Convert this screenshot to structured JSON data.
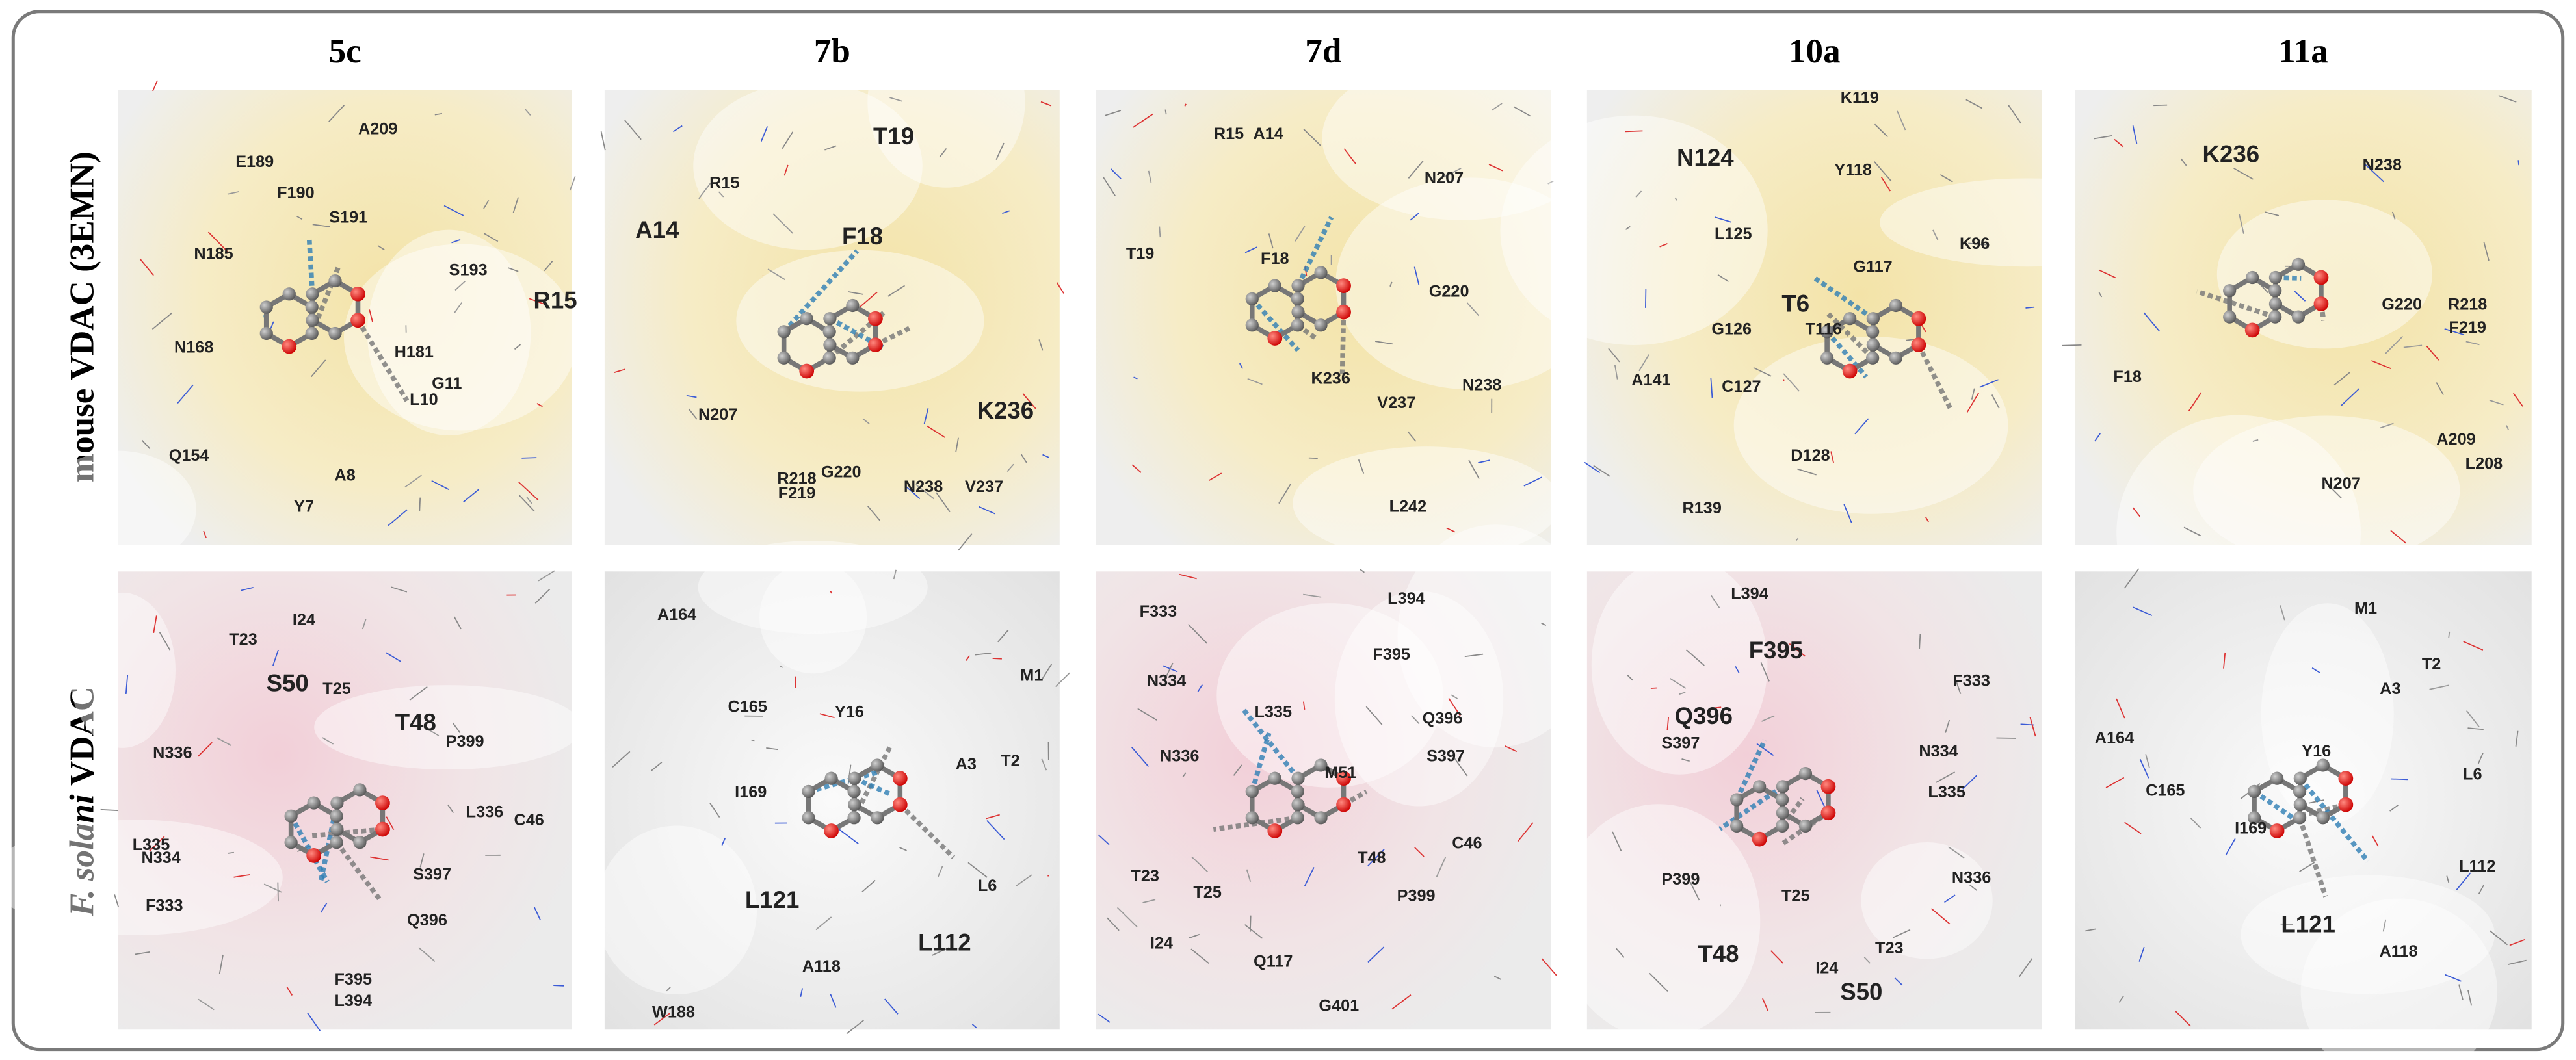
{
  "columns": [
    "5c",
    "7b",
    "7d",
    "10a",
    "11a"
  ],
  "rows": [
    {
      "label": "mouse VDAC (3EMN)"
    },
    {
      "label_italic": "F. solani",
      "label": "VDAC"
    }
  ],
  "panels": [
    [
      {
        "residues": [
          "A209",
          "E189",
          "F190",
          "S191",
          "N185",
          "S193",
          "R15",
          "N168",
          "H181",
          "G11",
          "L10",
          "Q154",
          "A8",
          "Y7"
        ]
      },
      {
        "residues": [
          "T19",
          "R15",
          "A14",
          "F18",
          "N207",
          "K236",
          "G220",
          "R218",
          "F219",
          "N238",
          "V237"
        ]
      },
      {
        "residues": [
          "R15",
          "A14",
          "N207",
          "T19",
          "F18",
          "G220",
          "K236",
          "V237",
          "N238",
          "L242"
        ]
      },
      {
        "residues": [
          "K119",
          "N124",
          "Y118",
          "L125",
          "K96",
          "G117",
          "T6",
          "G126",
          "T116",
          "A141",
          "C127",
          "D128",
          "R139"
        ]
      },
      {
        "residues": [
          "K236",
          "N238",
          "G220",
          "R218",
          "F219",
          "F18",
          "A209",
          "L208",
          "N207"
        ]
      }
    ],
    [
      {
        "residues": [
          "I24",
          "T23",
          "S50",
          "T25",
          "T48",
          "N336",
          "P399",
          "L336",
          "C46",
          "L335",
          "N334",
          "S397",
          "F333",
          "Q396",
          "F395",
          "L394"
        ]
      },
      {
        "residues": [
          "A164",
          "M1",
          "C165",
          "Y16",
          "T2",
          "A3",
          "I169",
          "L6",
          "L121",
          "L112",
          "A118",
          "W188"
        ]
      },
      {
        "residues": [
          "L394",
          "F333",
          "F395",
          "N334",
          "L335",
          "Q396",
          "S397",
          "N336",
          "M51",
          "C46",
          "T48",
          "P399",
          "T23",
          "T25",
          "I24",
          "Q117",
          "G401"
        ]
      },
      {
        "residues": [
          "L394",
          "F395",
          "F333",
          "Q396",
          "S397",
          "N334",
          "L335",
          "N336",
          "P399",
          "T25",
          "T48",
          "T23",
          "I24",
          "S50"
        ]
      },
      {
        "residues": [
          "M1",
          "T2",
          "A3",
          "A164",
          "Y16",
          "L6",
          "C165",
          "I169",
          "L112",
          "L121",
          "A118"
        ]
      }
    ]
  ]
}
